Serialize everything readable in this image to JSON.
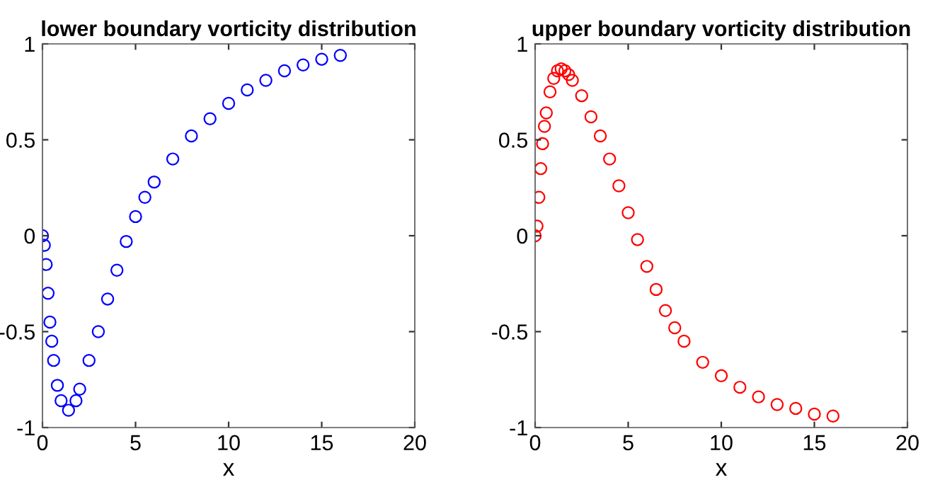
{
  "chart_data": [
    {
      "type": "scatter",
      "title": "lower boundary vorticity distribution",
      "xlabel": "x",
      "xlim": [
        0,
        20
      ],
      "ylim": [
        -1,
        1
      ],
      "xticks": [
        0,
        5,
        10,
        15,
        20
      ],
      "yticks": [
        -1,
        -0.5,
        0,
        0.5,
        1
      ],
      "marker": "circle",
      "grid": false,
      "series": [
        {
          "color": "#0000ff",
          "x": [
            0,
            0.1,
            0.2,
            0.3,
            0.4,
            0.5,
            0.6,
            0.8,
            1.0,
            1.4,
            1.8,
            2.0,
            2.5,
            3,
            3.5,
            4,
            4.5,
            5,
            5.5,
            6,
            7,
            8,
            9,
            10,
            11,
            12,
            13,
            14,
            15,
            16
          ],
          "values": [
            0,
            -0.05,
            -0.15,
            -0.3,
            -0.45,
            -0.55,
            -0.65,
            -0.78,
            -0.86,
            -0.91,
            -0.86,
            -0.8,
            -0.65,
            -0.5,
            -0.33,
            -0.18,
            -0.03,
            0.1,
            0.2,
            0.28,
            0.4,
            0.52,
            0.61,
            0.69,
            0.76,
            0.81,
            0.86,
            0.89,
            0.92,
            0.94
          ]
        }
      ]
    },
    {
      "type": "scatter",
      "title": "upper boundary vorticity distribution",
      "xlabel": "x",
      "xlim": [
        0,
        20
      ],
      "ylim": [
        -1,
        1
      ],
      "xticks": [
        0,
        5,
        10,
        15,
        20
      ],
      "yticks": [
        -1,
        -0.5,
        0,
        0.5,
        1
      ],
      "marker": "circle",
      "grid": false,
      "series": [
        {
          "color": "#ff0000",
          "x": [
            0,
            0.1,
            0.2,
            0.3,
            0.4,
            0.5,
            0.6,
            0.8,
            1.0,
            1.2,
            1.4,
            1.6,
            1.8,
            2.0,
            2.5,
            3,
            3.5,
            4,
            4.5,
            5,
            5.5,
            6,
            6.5,
            7,
            7.5,
            8,
            9,
            10,
            11,
            12,
            13,
            14,
            15,
            16
          ],
          "values": [
            0,
            0.05,
            0.2,
            0.35,
            0.48,
            0.57,
            0.64,
            0.75,
            0.82,
            0.86,
            0.87,
            0.86,
            0.84,
            0.81,
            0.73,
            0.62,
            0.52,
            0.4,
            0.26,
            0.12,
            -0.02,
            -0.16,
            -0.28,
            -0.39,
            -0.48,
            -0.55,
            -0.66,
            -0.73,
            -0.79,
            -0.84,
            -0.88,
            -0.9,
            -0.93,
            -0.94
          ]
        }
      ]
    }
  ]
}
